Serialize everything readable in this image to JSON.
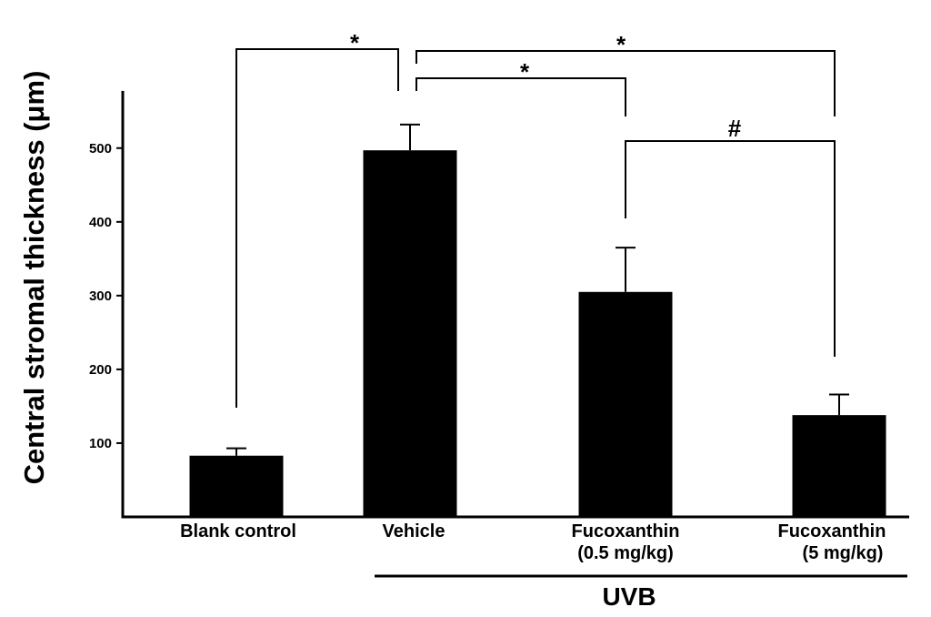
{
  "chart_data": {
    "type": "bar",
    "title": "",
    "xlabel": "",
    "ylabel": "Central stromal thickness  (μm)",
    "ylim": [
      0,
      580
    ],
    "yticks": [
      100,
      200,
      300,
      400,
      500
    ],
    "categories": [
      [
        "Blank control"
      ],
      [
        "Vehicle"
      ],
      [
        "Fucoxanthin",
        "(0.5 mg/kg)"
      ],
      [
        "Fucoxanthin",
        "(5 mg/kg)"
      ]
    ],
    "values": [
      83,
      497,
      305,
      138
    ],
    "error": [
      10,
      35,
      60,
      28
    ],
    "grid": false,
    "legend": "none",
    "significance": [
      {
        "from": 0,
        "to": 1,
        "label": "*"
      },
      {
        "from": 1,
        "to": 2,
        "label": "*"
      },
      {
        "from": 1,
        "to": 3,
        "label": "*"
      },
      {
        "from": 2,
        "to": 3,
        "label": "#"
      }
    ],
    "group": {
      "label": "UVB",
      "from": 1,
      "to": 3
    }
  }
}
